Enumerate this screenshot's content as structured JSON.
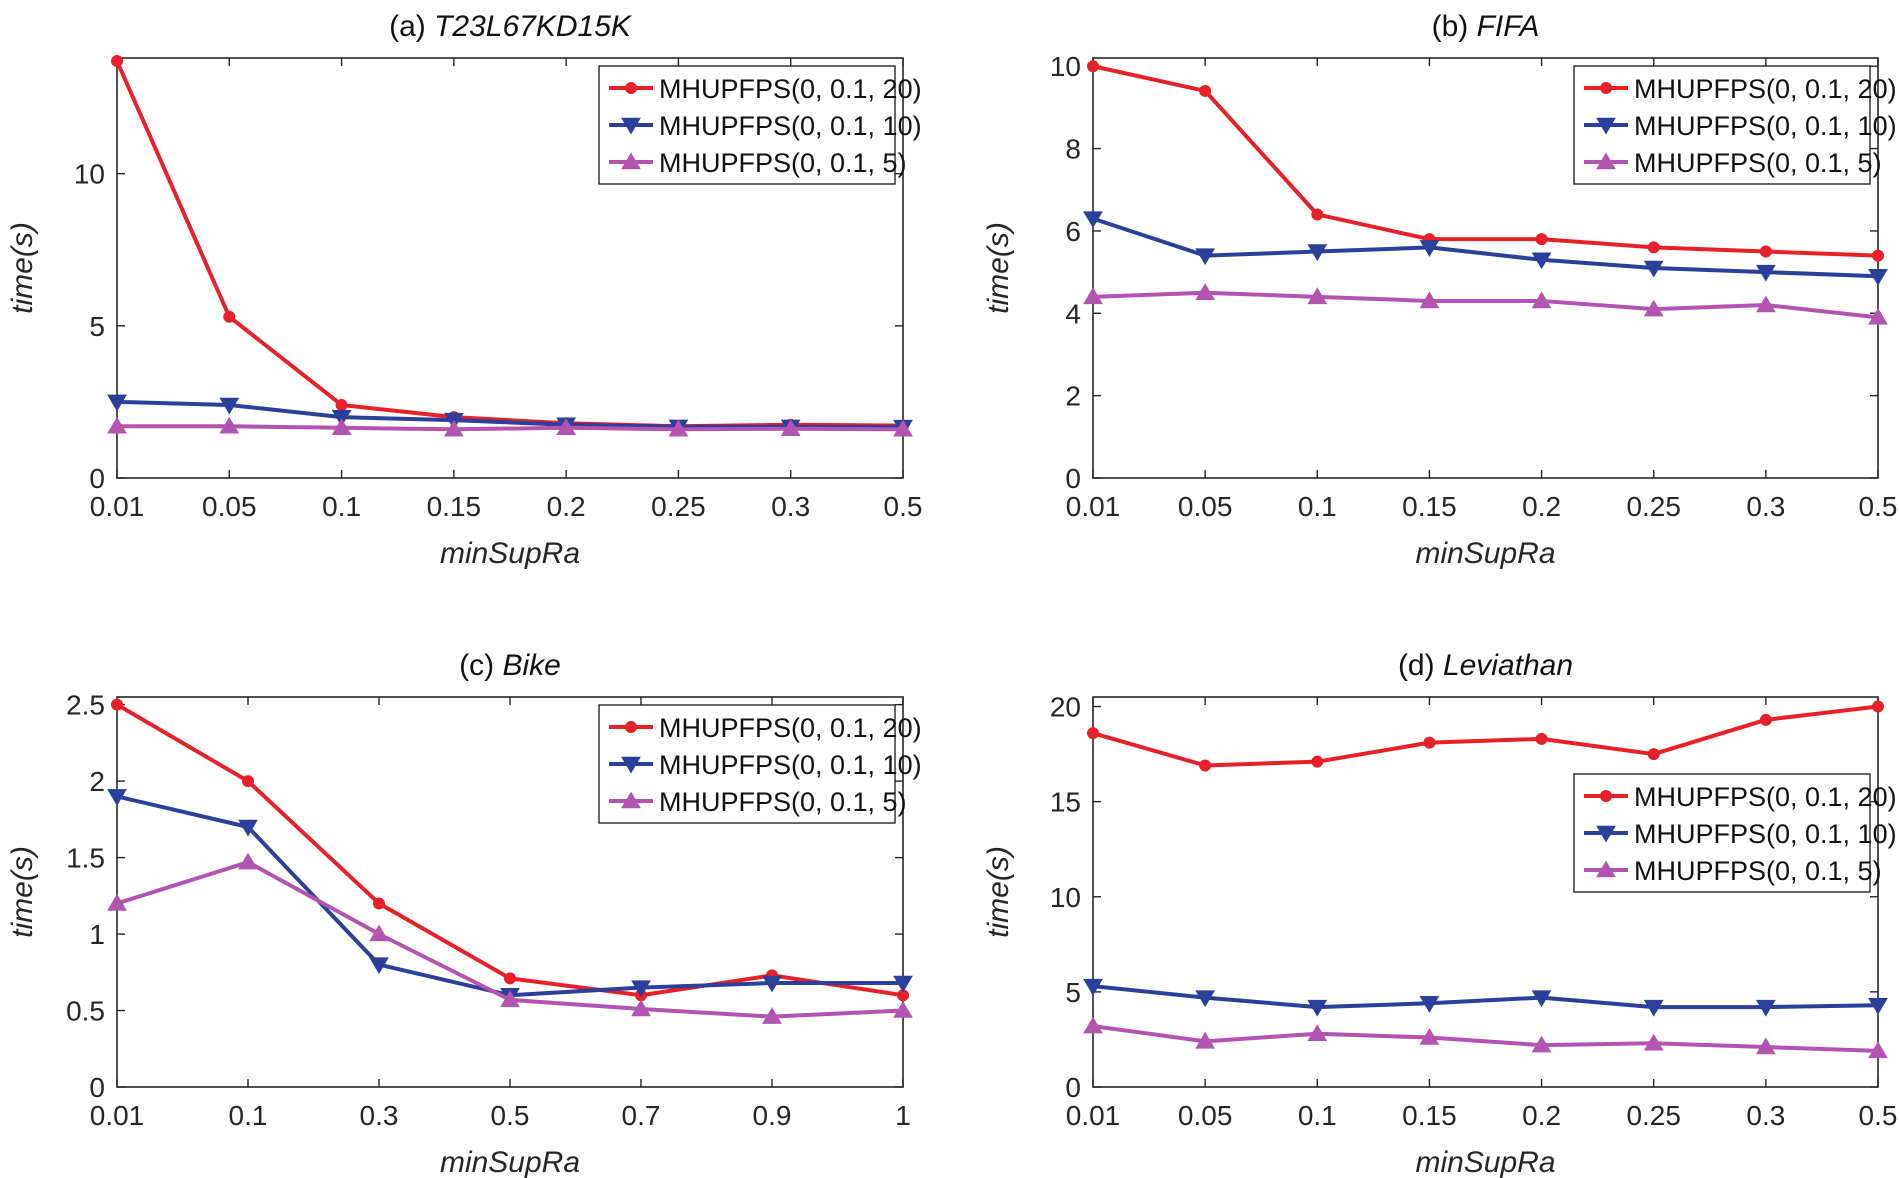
{
  "chart_data": [
    {
      "type": "line",
      "title_prefix": "(a) ",
      "title_name": "T23L67KD15K",
      "xlabel": "minSupRa",
      "ylabel": "time(s)",
      "categories": [
        "0.01",
        "0.05",
        "0.1",
        "0.15",
        "0.2",
        "0.25",
        "0.3",
        "0.5"
      ],
      "ylim": [
        0,
        13.8
      ],
      "yticks": [
        0,
        5,
        10
      ],
      "legend_position": "top-right",
      "series": [
        {
          "name": "MHUPFPS(0, 0.1, 20)",
          "color": "#e8202a",
          "marker": "circle",
          "values": [
            13.7,
            5.3,
            2.4,
            2.0,
            1.8,
            1.7,
            1.75,
            1.72
          ]
        },
        {
          "name": "MHUPFPS(0, 0.1, 10)",
          "color": "#2c3f9b",
          "marker": "triangle-down",
          "values": [
            2.5,
            2.4,
            2.0,
            1.9,
            1.75,
            1.68,
            1.68,
            1.67
          ]
        },
        {
          "name": "MHUPFPS(0, 0.1, 5)",
          "color": "#b355b0",
          "marker": "triangle-up",
          "values": [
            1.7,
            1.7,
            1.65,
            1.6,
            1.65,
            1.6,
            1.62,
            1.6
          ]
        }
      ]
    },
    {
      "type": "line",
      "title_prefix": "(b) ",
      "title_name": "FIFA",
      "xlabel": "minSupRa",
      "ylabel": "time(s)",
      "categories": [
        "0.01",
        "0.05",
        "0.1",
        "0.15",
        "0.2",
        "0.25",
        "0.3",
        "0.5"
      ],
      "ylim": [
        0,
        10.2
      ],
      "yticks": [
        0,
        2,
        4,
        6,
        8,
        10
      ],
      "legend_position": "top-right",
      "series": [
        {
          "name": "MHUPFPS(0, 0.1, 20)",
          "color": "#e8202a",
          "marker": "circle",
          "values": [
            10.0,
            9.4,
            6.4,
            5.8,
            5.8,
            5.6,
            5.5,
            5.4
          ]
        },
        {
          "name": "MHUPFPS(0, 0.1, 10)",
          "color": "#2c3f9b",
          "marker": "triangle-down",
          "values": [
            6.3,
            5.4,
            5.5,
            5.6,
            5.3,
            5.1,
            5.0,
            4.9
          ]
        },
        {
          "name": "MHUPFPS(0, 0.1, 5)",
          "color": "#b355b0",
          "marker": "triangle-up",
          "values": [
            4.4,
            4.5,
            4.4,
            4.3,
            4.3,
            4.1,
            4.2,
            3.9
          ]
        }
      ]
    },
    {
      "type": "line",
      "title_prefix": "(c) ",
      "title_name": "Bike",
      "xlabel": "minSupRa",
      "ylabel": "time(s)",
      "categories": [
        "0.01",
        "0.1",
        "0.3",
        "0.5",
        "0.7",
        "0.9",
        "1"
      ],
      "ylim": [
        0,
        2.55
      ],
      "yticks": [
        0,
        0.5,
        1,
        1.5,
        2,
        2.5
      ],
      "legend_position": "top-right",
      "series": [
        {
          "name": "MHUPFPS(0, 0.1, 20)",
          "color": "#e8202a",
          "marker": "circle",
          "values": [
            2.5,
            2.0,
            1.2,
            0.71,
            0.6,
            0.73,
            0.6
          ]
        },
        {
          "name": "MHUPFPS(0, 0.1, 10)",
          "color": "#2c3f9b",
          "marker": "triangle-down",
          "values": [
            1.9,
            1.7,
            0.8,
            0.6,
            0.65,
            0.68,
            0.68
          ]
        },
        {
          "name": "MHUPFPS(0, 0.1, 5)",
          "color": "#b355b0",
          "marker": "triangle-up",
          "values": [
            1.2,
            1.47,
            1.0,
            0.57,
            0.51,
            0.46,
            0.5
          ]
        }
      ]
    },
    {
      "type": "line",
      "title_prefix": "(d) ",
      "title_name": "Leviathan",
      "xlabel": "minSupRa",
      "ylabel": "time(s)",
      "categories": [
        "0.01",
        "0.05",
        "0.1",
        "0.15",
        "0.2",
        "0.25",
        "0.3",
        "0.5"
      ],
      "ylim": [
        0,
        20.5
      ],
      "yticks": [
        0,
        5,
        10,
        15,
        20
      ],
      "legend_position": "center-right",
      "series": [
        {
          "name": "MHUPFPS(0, 0.1, 20)",
          "color": "#e8202a",
          "marker": "circle",
          "values": [
            18.6,
            16.9,
            17.1,
            18.1,
            18.3,
            17.5,
            19.3,
            20.0
          ]
        },
        {
          "name": "MHUPFPS(0, 0.1, 10)",
          "color": "#2c3f9b",
          "marker": "triangle-down",
          "values": [
            5.3,
            4.7,
            4.2,
            4.4,
            4.7,
            4.2,
            4.2,
            4.3
          ]
        },
        {
          "name": "MHUPFPS(0, 0.1, 5)",
          "color": "#b355b0",
          "marker": "triangle-up",
          "values": [
            3.2,
            2.4,
            2.8,
            2.6,
            2.2,
            2.3,
            2.1,
            1.9
          ]
        }
      ]
    }
  ]
}
